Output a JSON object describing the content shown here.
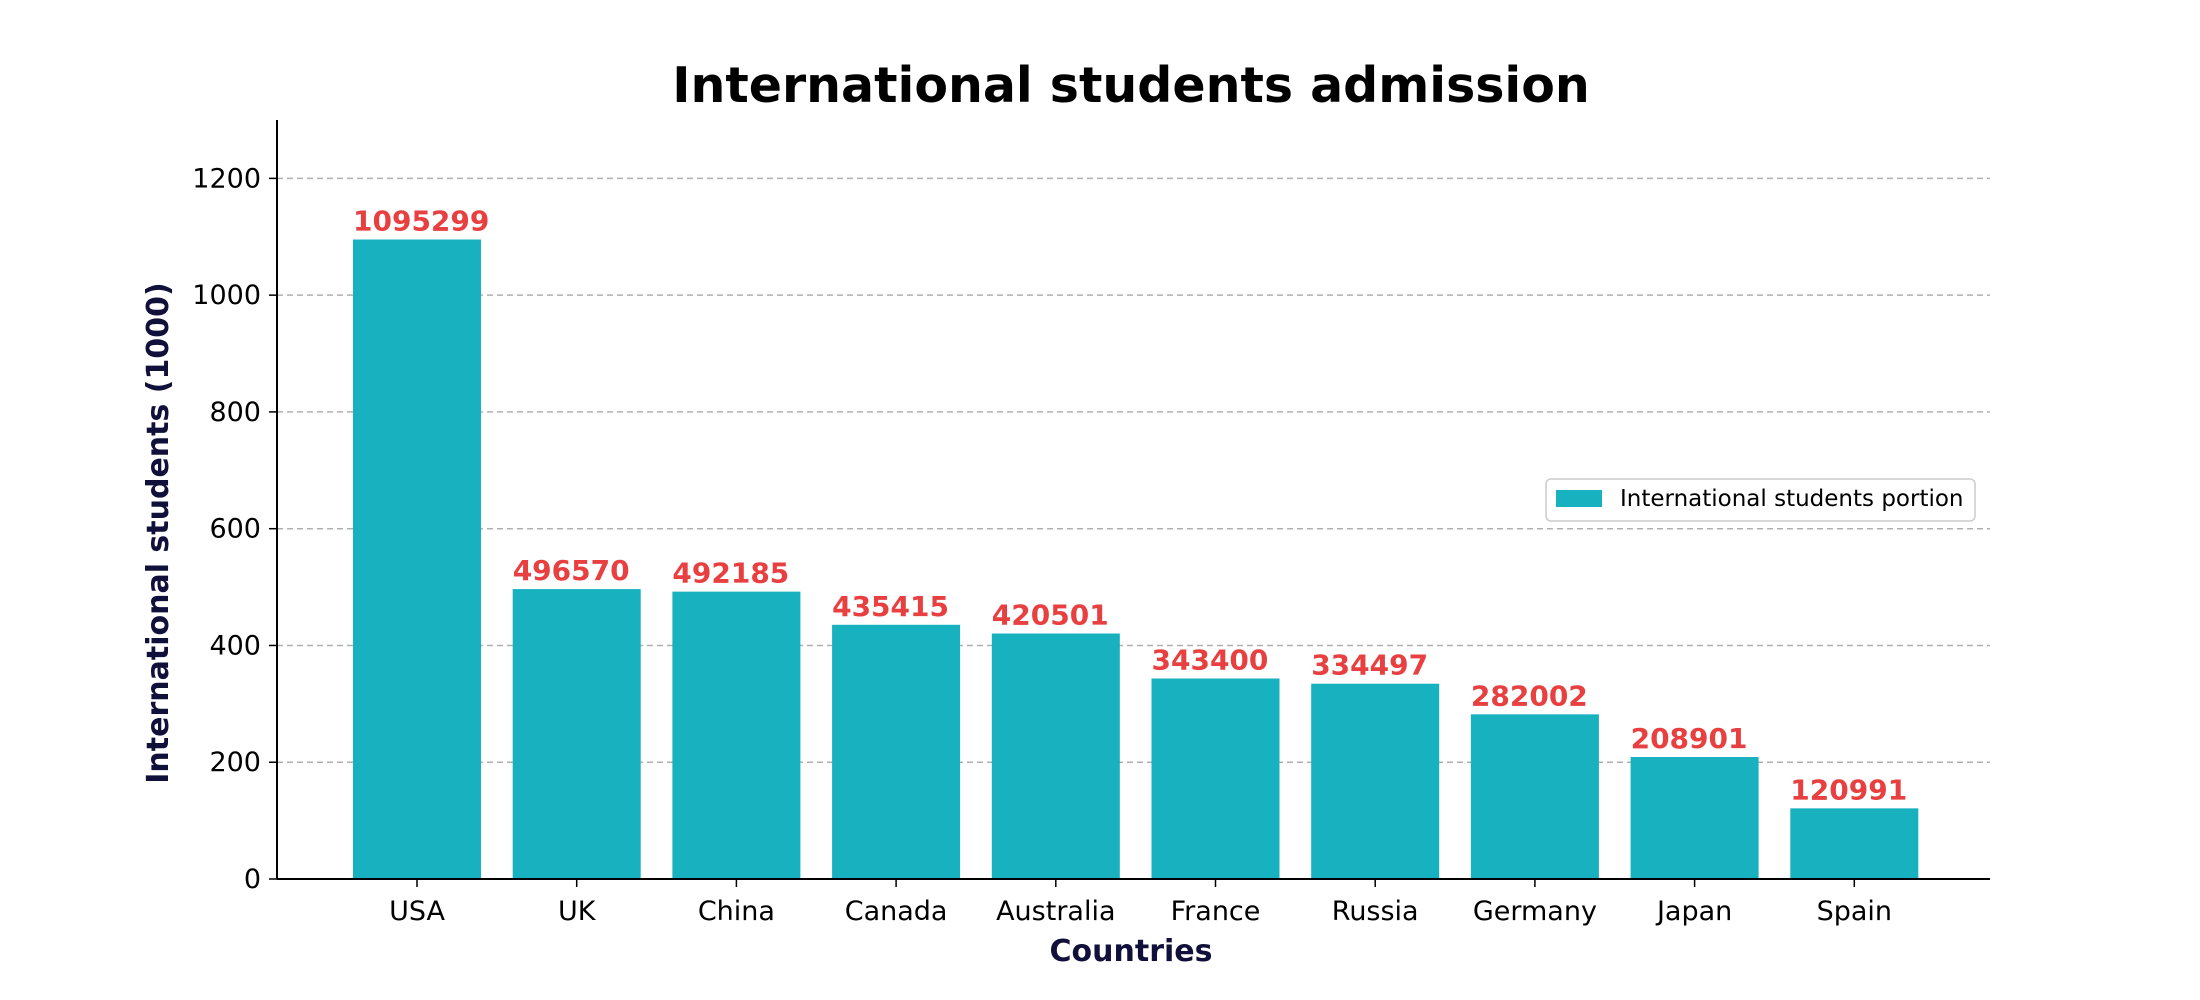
{
  "chart_data": {
    "type": "bar",
    "title": "International students admission",
    "xlabel": "Countries",
    "ylabel": "International students (1000)",
    "categories": [
      "USA",
      "UK",
      "China",
      "Canada",
      "Australia",
      "France",
      "Russia",
      "Germany",
      "Japan",
      "Spain"
    ],
    "series": [
      {
        "name": "International students portion",
        "values": [
          1095.299,
          496.57,
          492.185,
          435.415,
          420.501,
          343.4,
          334.497,
          282.002,
          208.901,
          120.991
        ]
      }
    ],
    "data_labels": [
      "1095299",
      "496570",
      "492185",
      "435415",
      "420501",
      "343400",
      "334497",
      "282002",
      "208901",
      "120991"
    ],
    "yticks": [
      "0",
      "200",
      "400",
      "600",
      "800",
      "1000",
      "1200"
    ],
    "ytick_values": [
      0,
      200,
      400,
      600,
      800,
      1000,
      1200
    ],
    "ylim": [
      0,
      1300
    ],
    "grid": "y-dashed",
    "legend_position": "center-right",
    "colors": {
      "bar": "#17b1bf",
      "data_label": "#e84040",
      "axis_label": "#10103a",
      "grid": "#b0b0b0",
      "axis": "#000000"
    }
  }
}
